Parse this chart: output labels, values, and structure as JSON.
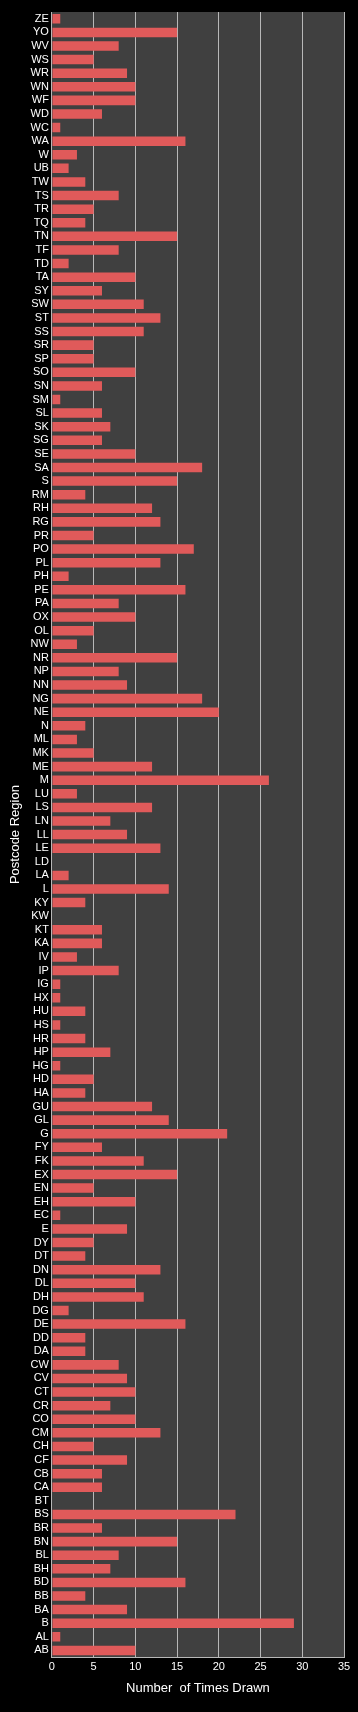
{
  "chart_data": {
    "type": "bar",
    "orientation": "horizontal",
    "xlabel": "Number  of Times Drawn",
    "ylabel": "Postcode Region",
    "categories": [
      "ZE",
      "YO",
      "WV",
      "WS",
      "WR",
      "WN",
      "WF",
      "WD",
      "WC",
      "WA",
      "W",
      "UB",
      "TW",
      "TS",
      "TR",
      "TQ",
      "TN",
      "TF",
      "TD",
      "TA",
      "SY",
      "SW",
      "ST",
      "SS",
      "SR",
      "SP",
      "SO",
      "SN",
      "SM",
      "SL",
      "SK",
      "SG",
      "SE",
      "SA",
      "S",
      "RM",
      "RH",
      "RG",
      "PR",
      "PO",
      "PL",
      "PH",
      "PE",
      "PA",
      "OX",
      "OL",
      "NW",
      "NR",
      "NP",
      "NN",
      "NG",
      "NE",
      "N",
      "ML",
      "MK",
      "ME",
      "M",
      "LU",
      "LS",
      "LN",
      "LL",
      "LE",
      "LD",
      "LA",
      "L",
      "KY",
      "KW",
      "KT",
      "KA",
      "IV",
      "IP",
      "IG",
      "HX",
      "HU",
      "HS",
      "HR",
      "HP",
      "HG",
      "HD",
      "HA",
      "GU",
      "GL",
      "G",
      "FY",
      "FK",
      "EX",
      "EN",
      "EH",
      "EC",
      "E",
      "DY",
      "DT",
      "DN",
      "DL",
      "DH",
      "DG",
      "DE",
      "DD",
      "DA",
      "CW",
      "CV",
      "CT",
      "CR",
      "CO",
      "CM",
      "CH",
      "CF",
      "CB",
      "CA",
      "BT",
      "BS",
      "BR",
      "BN",
      "BL",
      "BH",
      "BD",
      "BB",
      "BA",
      "B",
      "AL",
      "AB"
    ],
    "values": [
      1,
      15,
      8,
      5,
      9,
      10,
      10,
      6,
      1,
      16,
      3,
      2,
      4,
      8,
      5,
      4,
      15,
      8,
      2,
      10,
      6,
      11,
      13,
      11,
      5,
      5,
      10,
      6,
      1,
      6,
      7,
      6,
      10,
      18,
      15,
      4,
      12,
      13,
      5,
      17,
      13,
      2,
      16,
      8,
      10,
      5,
      3,
      15,
      8,
      9,
      18,
      20,
      4,
      3,
      5,
      12,
      26,
      3,
      12,
      7,
      9,
      13,
      0,
      2,
      14,
      4,
      0,
      6,
      6,
      3,
      8,
      1,
      1,
      4,
      1,
      4,
      7,
      1,
      5,
      4,
      12,
      14,
      21,
      6,
      11,
      15,
      5,
      10,
      1,
      9,
      5,
      4,
      13,
      10,
      11,
      2,
      16,
      4,
      4,
      8,
      9,
      10,
      7,
      10,
      13,
      5,
      9,
      6,
      6,
      0,
      22,
      6,
      15,
      8,
      7,
      16,
      4,
      9,
      29,
      1,
      10
    ],
    "color": "#e05a5a",
    "xlim": [
      0,
      35
    ],
    "xticks": [
      0,
      5,
      10,
      15,
      20,
      25,
      30,
      35
    ],
    "grid": "x",
    "legend": false
  }
}
